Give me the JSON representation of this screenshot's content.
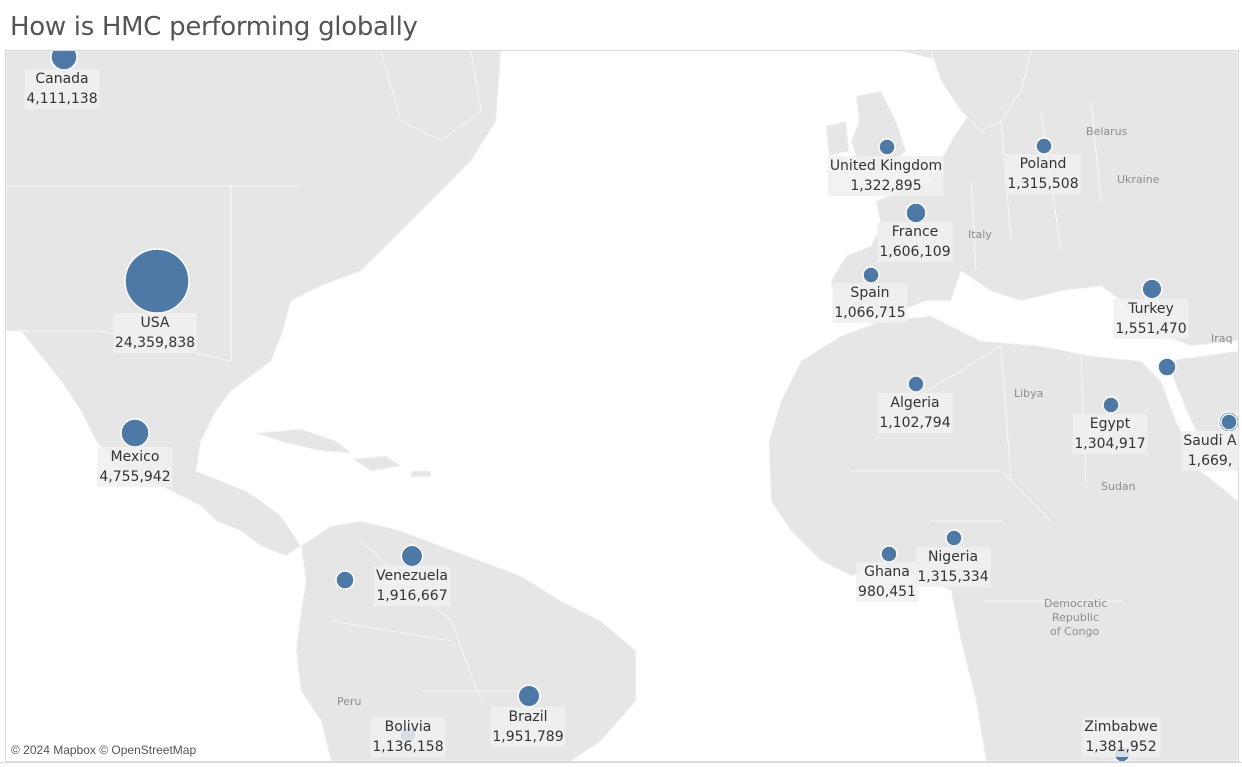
{
  "title": "How is HMC performing globally",
  "attribution": "© 2024 Mapbox © OpenStreetMap",
  "marker_color": "#4e79a7",
  "geo_labels": [
    "Belarus",
    "Ukraine",
    "Italy",
    "Libya",
    "Iraq",
    "Sudan",
    "Peru",
    "Democratic",
    "Republic",
    "of Congo"
  ],
  "countries": [
    {
      "name": "Canada",
      "value": "4,111,138",
      "sales": 4111138
    },
    {
      "name": "USA",
      "value": "24,359,838",
      "sales": 24359838
    },
    {
      "name": "Mexico",
      "value": "4,755,942",
      "sales": 4755942
    },
    {
      "name": "Venezuela",
      "value": "1,916,667",
      "sales": 1916667
    },
    {
      "name": "Bolivia",
      "value": "1,136,158",
      "sales": 1136158
    },
    {
      "name": "Brazil",
      "value": "1,951,789",
      "sales": 1951789
    },
    {
      "name": "United Kingdom",
      "value": "1,322,895",
      "sales": 1322895
    },
    {
      "name": "Poland",
      "value": "1,315,508",
      "sales": 1315508
    },
    {
      "name": "France",
      "value": "1,606,109",
      "sales": 1606109
    },
    {
      "name": "Spain",
      "value": "1,066,715",
      "sales": 1066715
    },
    {
      "name": "Turkey",
      "value": "1,551,470",
      "sales": 1551470
    },
    {
      "name": "Algeria",
      "value": "1,102,794",
      "sales": 1102794
    },
    {
      "name": "Egypt",
      "value": "1,304,917",
      "sales": 1304917
    },
    {
      "name": "Saudi A",
      "value": "1,669,",
      "sales": 1669000
    },
    {
      "name": "Ghana",
      "value": "980,451",
      "sales": 980451
    },
    {
      "name": "Nigeria",
      "value": "1,315,334",
      "sales": 1315334
    },
    {
      "name": "Zimbabwe",
      "value": "1,381,952",
      "sales": 1381952
    }
  ],
  "unlabeled_markers": 3
}
